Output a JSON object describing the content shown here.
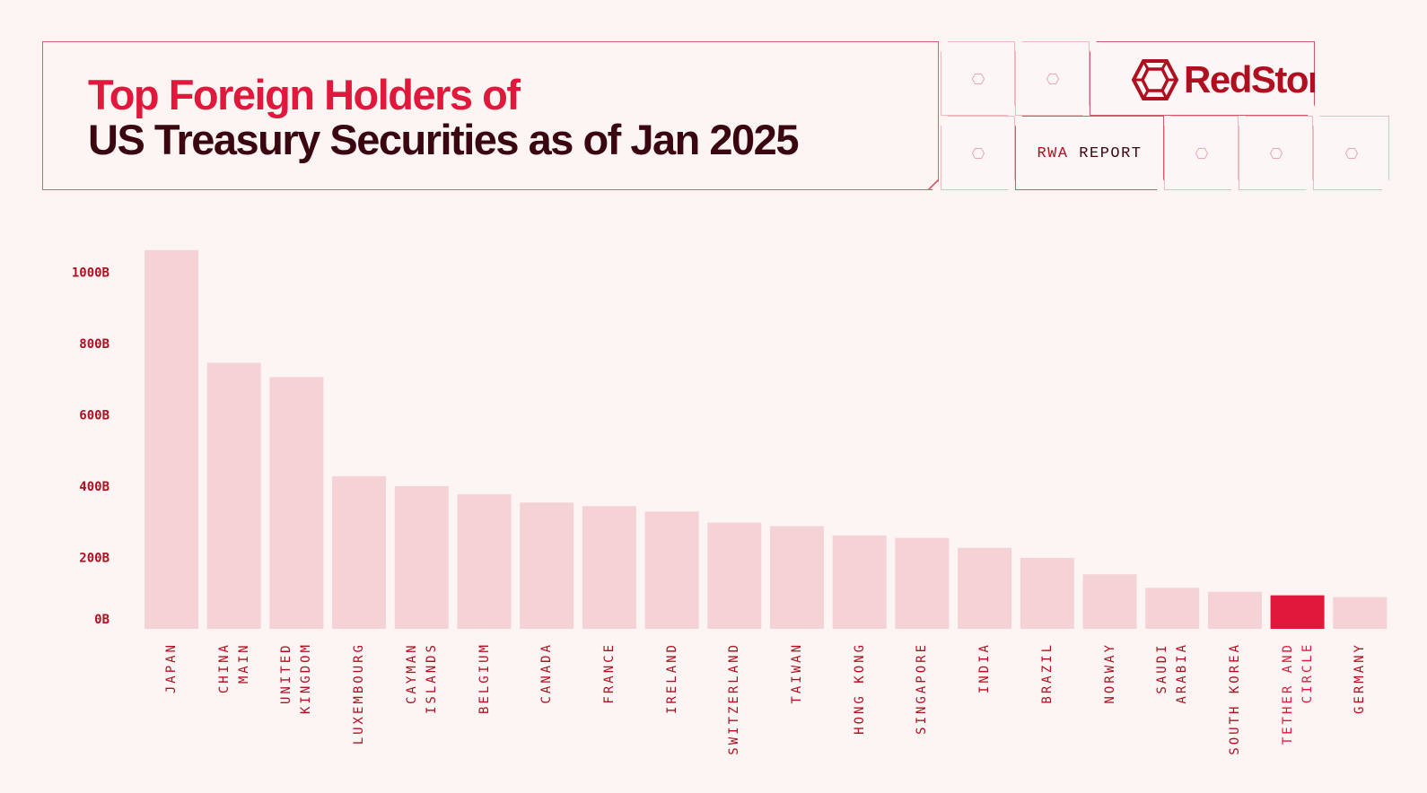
{
  "header": {
    "title_line1": "Top Foreign Holders of",
    "title_line2": "US Treasury Securities as of Jan 2025",
    "brand": "RedStone",
    "tag_part1": "RWA",
    "tag_part2": "REPORT"
  },
  "colors": {
    "bar": "#f4d2d6",
    "highlight": "#e0193c",
    "accent": "#b00f1f"
  },
  "chart_data": {
    "type": "bar",
    "title": "Top Foreign Holders of US Treasury Securities as of Jan 2025",
    "xlabel": "",
    "ylabel": "",
    "ylim": [
      0,
      1100
    ],
    "yticks": [
      {
        "v": 0,
        "label": "0B"
      },
      {
        "v": 200,
        "label": "200B"
      },
      {
        "v": 400,
        "label": "400B"
      },
      {
        "v": 600,
        "label": "600B"
      },
      {
        "v": 800,
        "label": "800B"
      },
      {
        "v": 1000,
        "label": "1000B"
      }
    ],
    "categories": [
      "JAPAN",
      "CHINA\nMAIN",
      "UNITED\nKINGDOM",
      "LUXEMBOURG",
      "CAYMAN\nISLANDS",
      "BELGIUM",
      "CANADA",
      "FRANCE",
      "IRELAND",
      "SWITZERLAND",
      "TAIWAN",
      "HONG KONG",
      "SINGAPORE",
      "INDIA",
      "BRAZIL",
      "NORWAY",
      "SAUDI\nARABIA",
      "SOUTH KOREA",
      "TETHER AND\nCIRCLE",
      "GERMANY"
    ],
    "values": [
      1062,
      746,
      706,
      428,
      400,
      377,
      354,
      344,
      329,
      298,
      288,
      262,
      255,
      227,
      199,
      153,
      115,
      104,
      94,
      89
    ],
    "highlight": "TETHER AND\nCIRCLE",
    "grid": false,
    "legend": "none"
  }
}
